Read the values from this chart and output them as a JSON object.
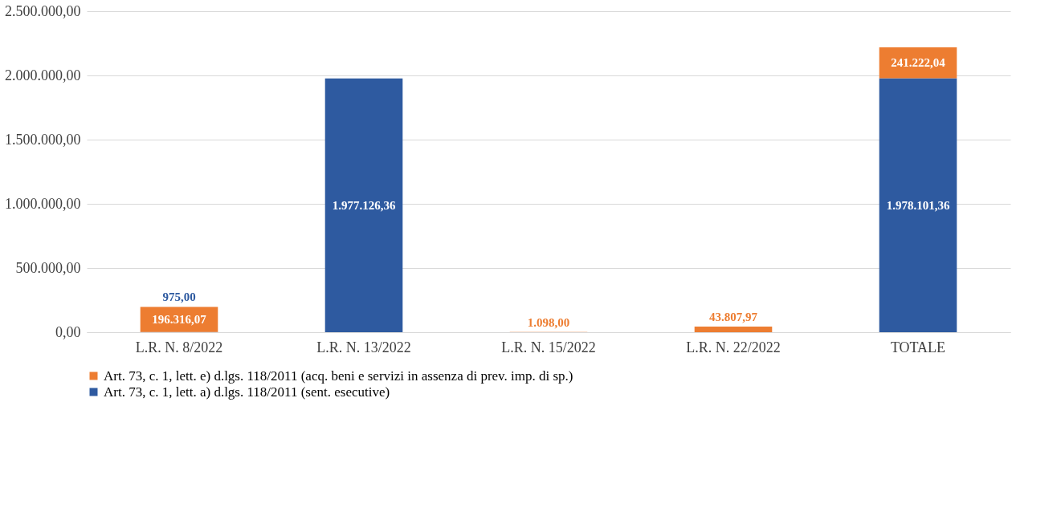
{
  "chart_data": {
    "type": "bar",
    "stacked": true,
    "categories": [
      "L.R. N. 8/2022",
      "L.R. N. 13/2022",
      "L.R. N. 15/2022",
      "L.R. N. 22/2022",
      "TOTALE"
    ],
    "series": [
      {
        "name": "Art. 73, c. 1, lett. a) d.lgs. 118/2011 (sent. esecutive)",
        "color": "#2e5aa0",
        "values": [
          975,
          1977126.36,
          null,
          null,
          1978101.36
        ],
        "value_labels": [
          "975,00",
          "1.977.126,36",
          null,
          null,
          "1.978.101,36"
        ]
      },
      {
        "name": "Art. 73, c. 1, lett. e) d.lgs. 118/2011 (acq. beni e servizi in assenza di prev. imp. di sp.)",
        "color": "#ed7d31",
        "values": [
          196316.07,
          null,
          1098,
          43807.97,
          241222.04
        ],
        "value_labels": [
          "196.316,07",
          null,
          "1.098,00",
          "43.807,97",
          "241.222,04"
        ]
      }
    ],
    "ylim": [
      0,
      2500000
    ],
    "yticks": [
      {
        "value": 0,
        "label": "0,00"
      },
      {
        "value": 500000,
        "label": "500.000,00"
      },
      {
        "value": 1000000,
        "label": "1.000.000,00"
      },
      {
        "value": 1500000,
        "label": "1.500.000,00"
      },
      {
        "value": 2000000,
        "label": "2.000.000,00"
      },
      {
        "value": 2500000,
        "label": "2.500.000,00"
      }
    ],
    "grid": "y",
    "legend": "bottom"
  }
}
